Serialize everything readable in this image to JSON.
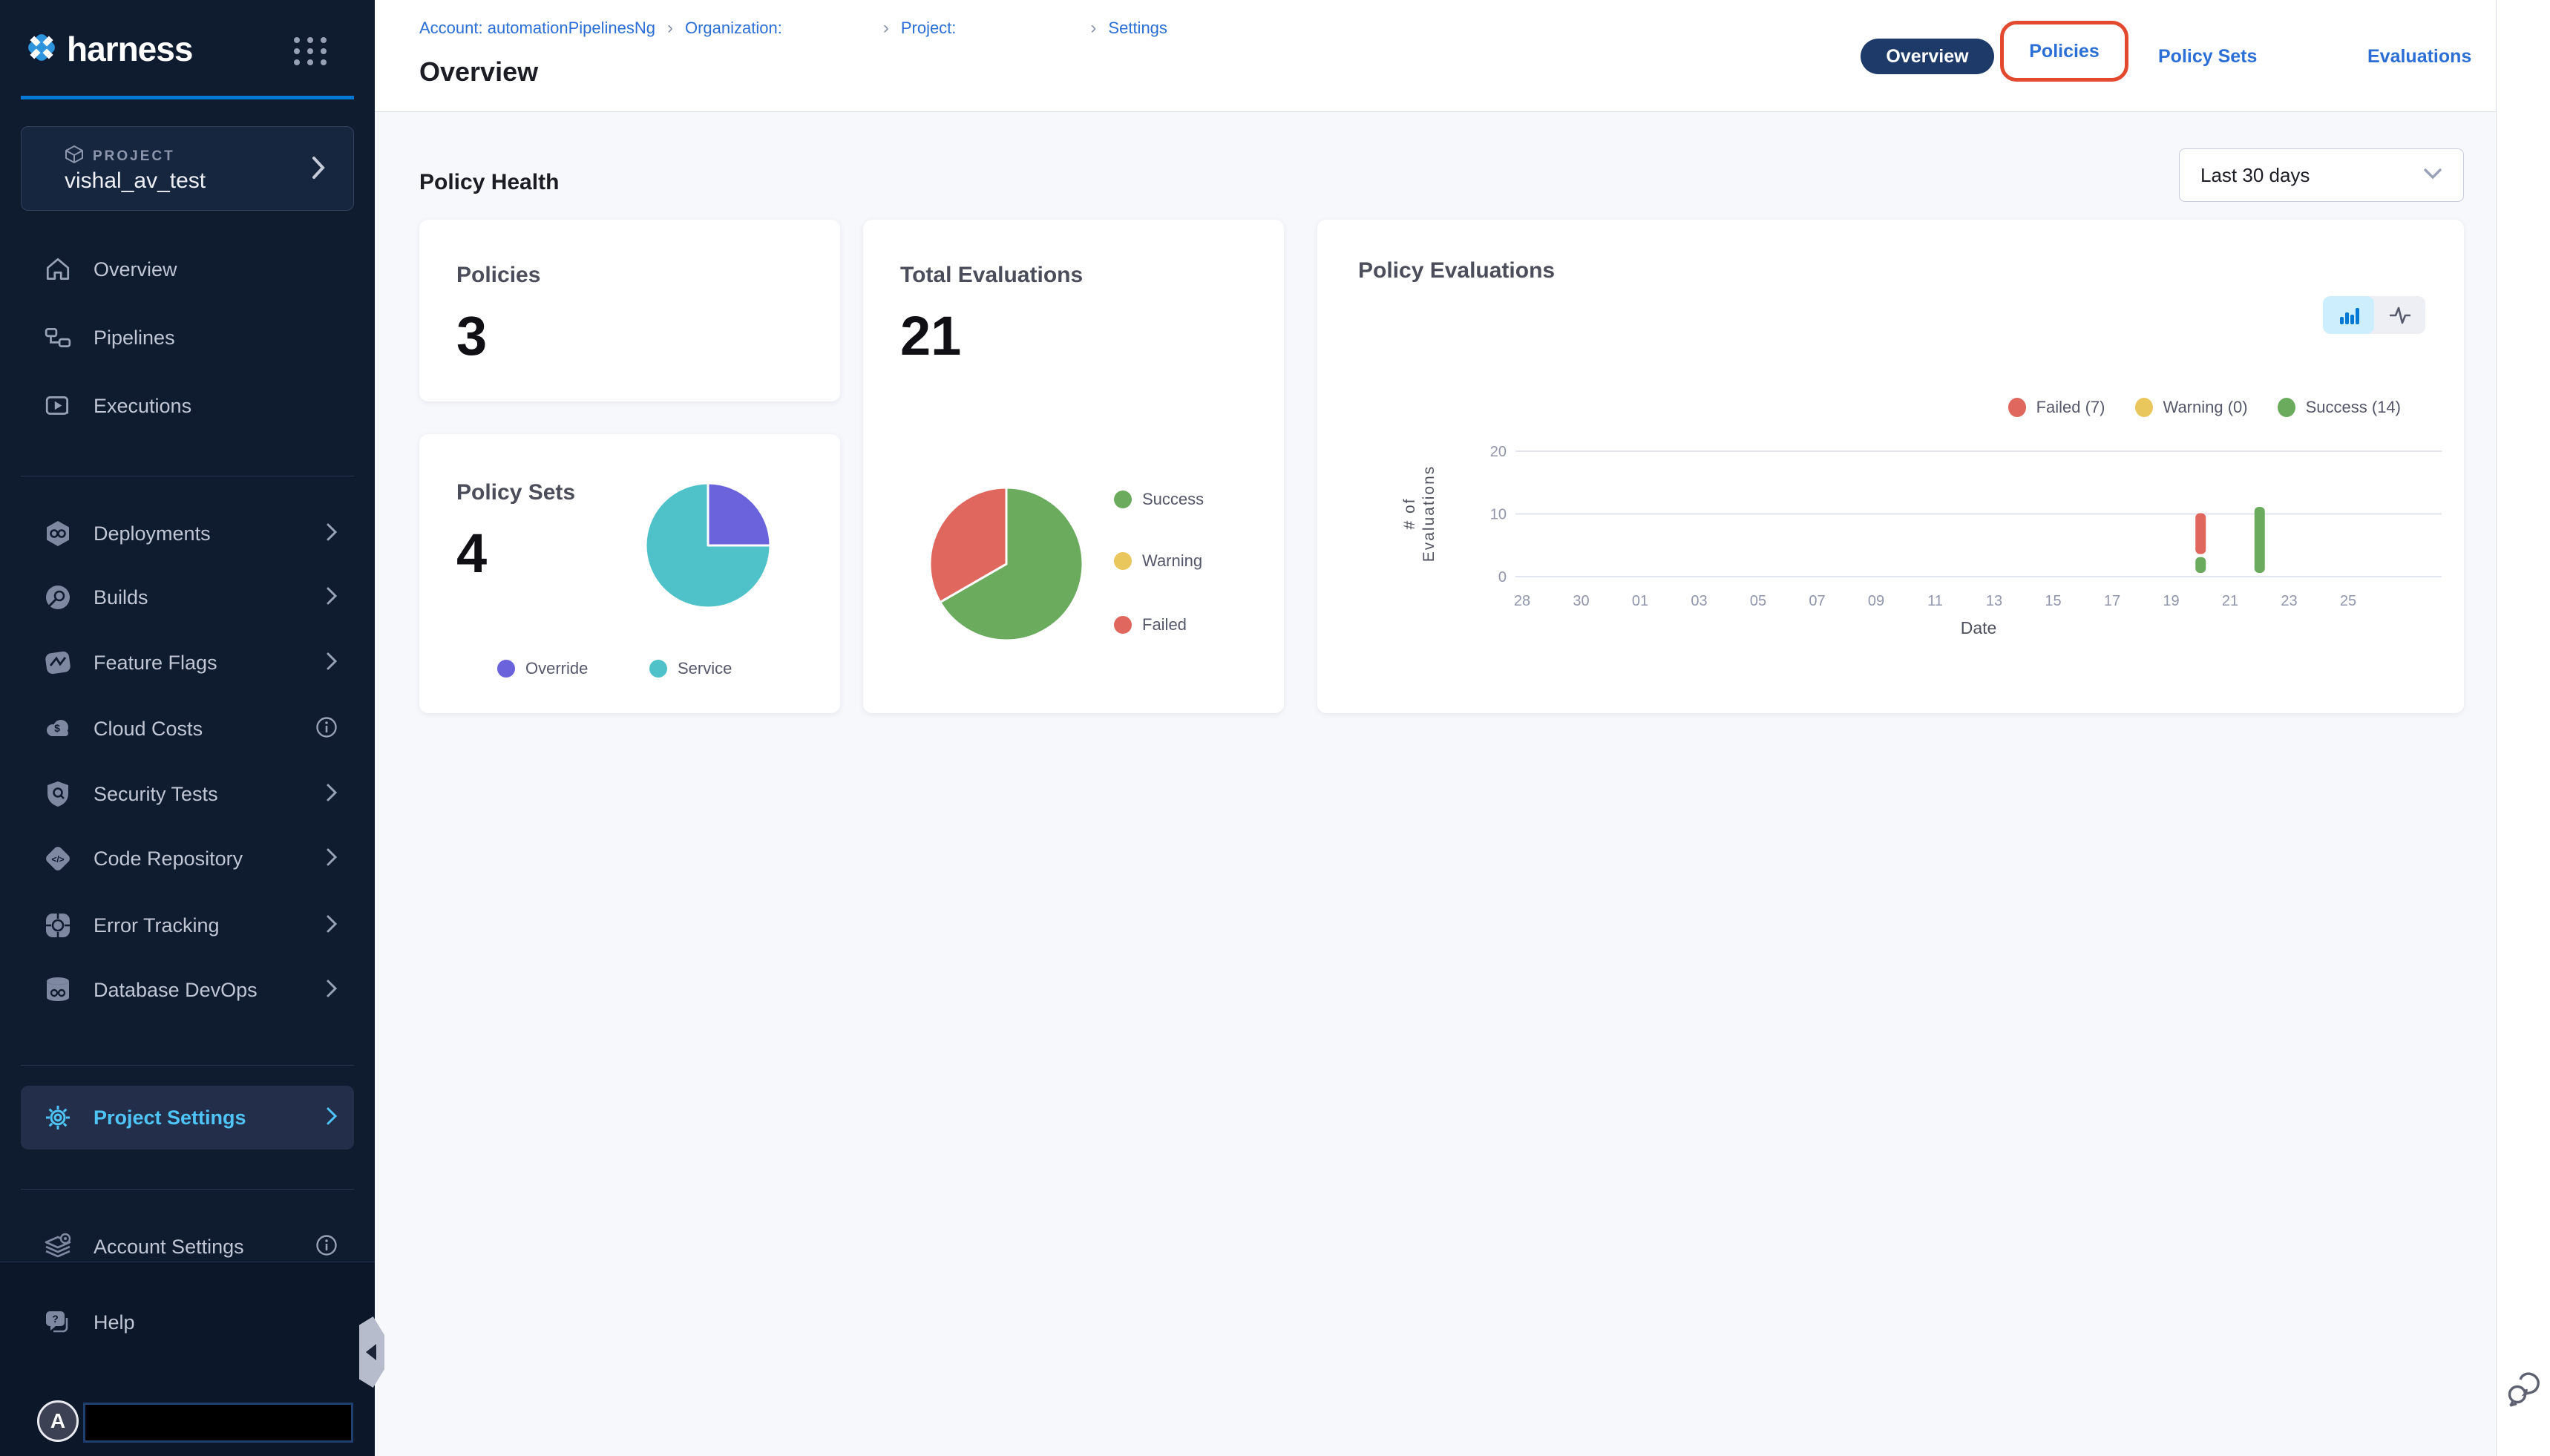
{
  "colors": {
    "sidebar_bg": "#0f1b2f",
    "accent_blue": "#0278d5",
    "active_item_text": "#4fc5f7",
    "link_blue": "#2b6fd6",
    "tab_pill_bg": "#1d3a69",
    "annotation_red": "#e2492f",
    "content_bg": "#f7f8fc",
    "success_green": "#6bab5e",
    "warning_yellow": "#e9c75c",
    "failed_red": "#e0675d",
    "override_purple": "#6a63dc",
    "service_teal": "#4fc2c9"
  },
  "sidebar": {
    "brand": "harness",
    "project_card": {
      "kicker": "PROJECT",
      "name": "vishal_av_test"
    },
    "nav_primary": [
      {
        "label": "Overview"
      },
      {
        "label": "Pipelines"
      },
      {
        "label": "Executions"
      }
    ],
    "nav_modules": [
      {
        "label": "Deployments"
      },
      {
        "label": "Builds"
      },
      {
        "label": "Feature Flags"
      },
      {
        "label": "Cloud Costs"
      },
      {
        "label": "Security Tests"
      },
      {
        "label": "Code Repository"
      },
      {
        "label": "Error Tracking"
      },
      {
        "label": "Database DevOps"
      }
    ],
    "project_settings_label": "Project Settings",
    "account_settings_label": "Account Settings",
    "help_label": "Help",
    "avatar_initial": "A",
    "icon_glyphs": {
      "help_question": "?",
      "code": "</>"
    }
  },
  "header": {
    "breadcrumb": {
      "account": "Account: automationPipelinesNg",
      "organization": "Organization:",
      "project": "Project:",
      "settings": "Settings",
      "separator": "›"
    },
    "page_title": "Overview",
    "tabs": [
      {
        "label": "Overview",
        "active": true
      },
      {
        "label": "Policies",
        "active": false,
        "annotated": true
      },
      {
        "label": "Policy Sets",
        "active": false
      },
      {
        "label": "Evaluations",
        "active": false
      }
    ]
  },
  "main": {
    "section_title": "Policy Health",
    "date_range": "Last 30 days",
    "policies_card": {
      "label": "Policies",
      "value": "3"
    },
    "total_evaluations_card": {
      "label": "Total Evaluations",
      "value": "21"
    },
    "policy_sets_card": {
      "label": "Policy Sets",
      "value": "4"
    },
    "policy_evaluations_card": {
      "label": "Policy Evaluations"
    }
  },
  "chart_data": [
    {
      "type": "pie",
      "title": "Total Evaluations",
      "total": 21,
      "slices": [
        {
          "label": "Success",
          "value": 14,
          "color": "#6bab5e"
        },
        {
          "label": "Warning",
          "value": 0,
          "color": "#e9c75c"
        },
        {
          "label": "Failed",
          "value": 7,
          "color": "#e0675d"
        }
      ],
      "legend_position": "right"
    },
    {
      "type": "pie",
      "title": "Policy Sets",
      "total": 4,
      "slices": [
        {
          "label": "Override",
          "value": 1,
          "color": "#6a63dc"
        },
        {
          "label": "Service",
          "value": 3,
          "color": "#4fc2c9"
        }
      ],
      "legend_position": "bottom"
    },
    {
      "type": "bar",
      "title": "Policy Evaluations",
      "stacked": true,
      "xlabel": "Date",
      "ylabel": "# of Evaluations",
      "ylim": [
        0,
        20
      ],
      "y_ticks": [
        0,
        10,
        20
      ],
      "x_ticks": [
        "28",
        "30",
        "01",
        "03",
        "05",
        "07",
        "09",
        "11",
        "13",
        "15",
        "17",
        "19",
        "21",
        "23",
        "25"
      ],
      "legend": [
        {
          "label": "Failed (7)",
          "color": "#e0675d"
        },
        {
          "label": "Warning (0)",
          "color": "#e9c75c"
        },
        {
          "label": "Success (14)",
          "color": "#6bab5e"
        }
      ],
      "bars": [
        {
          "date": "20",
          "x_index": 11.5,
          "segments": [
            {
              "name": "Success",
              "value": 3,
              "color": "#6bab5e"
            },
            {
              "name": "Failed",
              "value": 7,
              "color": "#e0675d"
            }
          ]
        },
        {
          "date": "22",
          "x_index": 12.5,
          "segments": [
            {
              "name": "Success",
              "value": 11,
              "color": "#6bab5e"
            }
          ]
        }
      ]
    }
  ]
}
